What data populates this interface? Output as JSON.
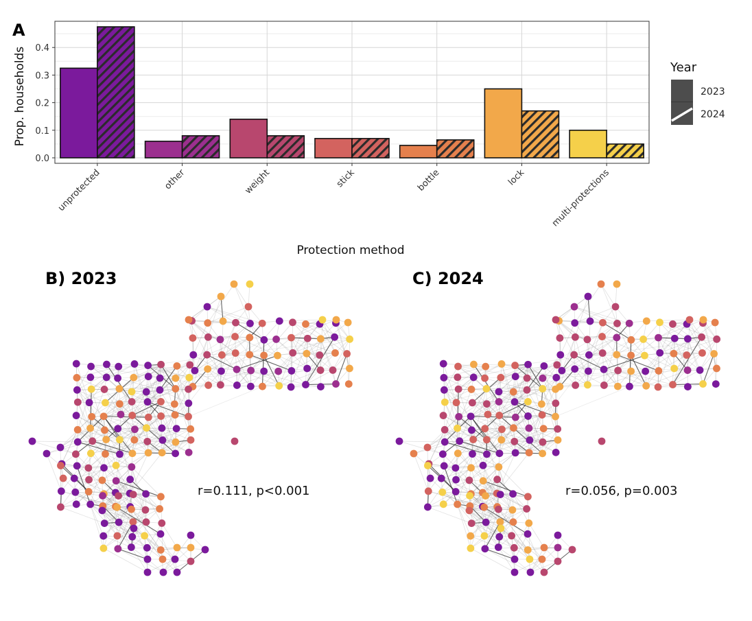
{
  "chart_data": [
    {
      "type": "bar",
      "panel": "A",
      "xlabel": "Protection method",
      "ylabel": "Prop. households",
      "ylim": [
        0,
        0.5
      ],
      "yticks": [
        "0.0",
        "0.1",
        "0.2",
        "0.3",
        "0.4"
      ],
      "categories": [
        "unprotected",
        "other",
        "weight",
        "stick",
        "bottle",
        "lock",
        "multi-protections"
      ],
      "colors": [
        "#7B1A9C",
        "#9C2F8F",
        "#B8476E",
        "#D3635F",
        "#E5804D",
        "#F2A84A",
        "#F5D04A"
      ],
      "series": [
        {
          "name": "2023",
          "pattern": "solid",
          "values": [
            0.325,
            0.06,
            0.14,
            0.07,
            0.045,
            0.25,
            0.1
          ]
        },
        {
          "name": "2024",
          "pattern": "hatched",
          "values": [
            0.475,
            0.08,
            0.08,
            0.07,
            0.065,
            0.17,
            0.05
          ]
        }
      ],
      "legend": {
        "title": "Year",
        "entries": [
          "2023",
          "2024"
        ],
        "position": "right"
      },
      "grid": true
    },
    {
      "type": "network",
      "panel": "B",
      "title": "B) 2023",
      "annotation": "r=0.111, p<0.001",
      "node_colors": [
        "#7B1A9C",
        "#9C2F8F",
        "#B8476E",
        "#D3635F",
        "#E5804D",
        "#F2A84A",
        "#F5D04A"
      ]
    },
    {
      "type": "network",
      "panel": "C",
      "title": "C) 2024",
      "annotation": "r=0.056, p=0.003",
      "node_colors": [
        "#7B1A9C",
        "#9C2F8F",
        "#B8476E",
        "#D3635F",
        "#E5804D",
        "#F2A84A",
        "#F5D04A"
      ]
    }
  ]
}
